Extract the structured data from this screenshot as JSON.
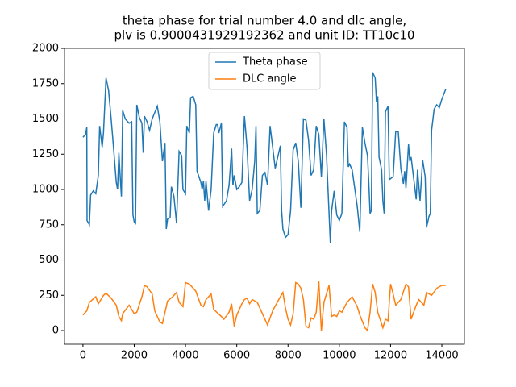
{
  "chart_data": {
    "type": "line",
    "title": [
      "theta phase for trial number 4.0 and dlc angle,",
      "plv is 0.9000431929192362 and unit ID: TT10c10"
    ],
    "series": [
      {
        "name": "Theta phase",
        "color": "#1f77b4",
        "x": [
          0,
          100,
          150,
          160,
          250,
          300,
          400,
          500,
          600,
          650,
          750,
          800,
          900,
          1000,
          1100,
          1200,
          1300,
          1350,
          1400,
          1450,
          1500,
          1550,
          1650,
          1800,
          1900,
          1950,
          2000,
          2050,
          2100,
          2200,
          2300,
          2350,
          2400,
          2500,
          2600,
          2700,
          2900,
          3000,
          3100,
          3200,
          3250,
          3300,
          3400,
          3450,
          3550,
          3650,
          3750,
          3850,
          3900,
          4000,
          4050,
          4150,
          4200,
          4300,
          4400,
          4450,
          4600,
          4650,
          4700,
          4750,
          4800,
          4900,
          5000,
          5100,
          5200,
          5250,
          5300,
          5400,
          5450,
          5600,
          5700,
          5800,
          5850,
          5900,
          6000,
          6100,
          6200,
          6300,
          6400,
          6500,
          6600,
          6700,
          6750,
          6800,
          6900,
          7000,
          7100,
          7200,
          7300,
          7400,
          7500,
          7600,
          7700,
          7750,
          7800,
          7900,
          8000,
          8100,
          8200,
          8300,
          8400,
          8500,
          8600,
          8700,
          8800,
          8900,
          9000,
          9100,
          9200,
          9300,
          9400,
          9500,
          9600,
          9650,
          9700,
          9800,
          9900,
          10000,
          10100,
          10200,
          10300,
          10350,
          10400,
          10500,
          10600,
          10700,
          10800,
          10900,
          11000,
          11100,
          11150,
          11200,
          11250,
          11300,
          11400,
          11450,
          11500,
          11550,
          11650,
          11700,
          11750,
          11800,
          11900,
          11950,
          12100,
          12200,
          12300,
          12400,
          12500,
          12550,
          12600,
          12700,
          12750,
          12800,
          12900,
          13000,
          13050,
          13150,
          13250,
          13350,
          13400,
          13500,
          13550,
          13600,
          13700,
          13800,
          13900,
          14000,
          14150
        ],
        "values": [
          1370,
          1390,
          1440,
          780,
          750,
          960,
          990,
          970,
          1100,
          1450,
          1300,
          1400,
          1790,
          1700,
          1500,
          1280,
          1050,
          1000,
          1260,
          1100,
          950,
          1560,
          1500,
          1470,
          1480,
          820,
          770,
          760,
          1600,
          1510,
          1470,
          1260,
          1520,
          1480,
          1420,
          1500,
          1590,
          1480,
          1200,
          1330,
          720,
          790,
          800,
          1020,
          950,
          760,
          1270,
          1240,
          1000,
          970,
          1450,
          1400,
          1650,
          1660,
          1600,
          1130,
          1050,
          1000,
          1060,
          920,
          1060,
          850,
          1000,
          1400,
          1460,
          1460,
          1400,
          1470,
          880,
          920,
          1030,
          1290,
          1030,
          1100,
          1000,
          1020,
          1050,
          1520,
          1300,
          920,
          1000,
          1200,
          1450,
          830,
          850,
          1100,
          1120,
          1030,
          1450,
          1300,
          1150,
          1230,
          1310,
          850,
          720,
          660,
          680,
          850,
          1280,
          1330,
          1200,
          870,
          1500,
          1490,
          1350,
          1100,
          1140,
          1450,
          1390,
          1090,
          1500,
          1250,
          830,
          620,
          850,
          990,
          820,
          780,
          830,
          1480,
          1440,
          1160,
          1180,
          1140,
          1010,
          880,
          700,
          1440,
          1330,
          1240,
          1050,
          830,
          850,
          1830,
          1790,
          1620,
          1660,
          1230,
          1140,
          920,
          830,
          1550,
          1590,
          1070,
          1090,
          1410,
          1410,
          1150,
          1040,
          1130,
          1010,
          1320,
          1200,
          1230,
          1080,
          930,
          1140,
          920,
          1210,
          1090,
          730,
          810,
          830,
          1420,
          1570,
          1600,
          1580,
          1640,
          1710
        ]
      },
      {
        "name": "DLC angle",
        "color": "#ff7f0e",
        "x": [
          0,
          150,
          250,
          500,
          600,
          800,
          900,
          1100,
          1300,
          1400,
          1500,
          1550,
          1800,
          2000,
          2100,
          2300,
          2400,
          2500,
          2700,
          2800,
          3000,
          3100,
          3300,
          3500,
          3650,
          3750,
          3900,
          4000,
          4150,
          4400,
          4600,
          4700,
          4800,
          5000,
          5100,
          5400,
          5500,
          5700,
          5800,
          5900,
          6000,
          6200,
          6300,
          6400,
          6500,
          6600,
          6800,
          6900,
          7200,
          7400,
          7700,
          7800,
          7900,
          8000,
          8100,
          8200,
          8300,
          8400,
          8500,
          8600,
          8700,
          8800,
          8900,
          9000,
          9100,
          9200,
          9300,
          9400,
          9600,
          9700,
          9800,
          9900,
          10000,
          10100,
          10300,
          10500,
          10700,
          10800,
          11000,
          11100,
          11200,
          11300,
          11400,
          11500,
          11700,
          11800,
          11900,
          12000,
          12100,
          12200,
          12400,
          12600,
          12700,
          12800,
          13000,
          13100,
          13300,
          13400,
          13600,
          13800,
          14000,
          14150
        ],
        "values": [
          110,
          140,
          200,
          240,
          190,
          250,
          265,
          230,
          180,
          100,
          70,
          120,
          180,
          120,
          130,
          240,
          320,
          310,
          260,
          140,
          60,
          50,
          210,
          240,
          270,
          200,
          170,
          340,
          330,
          280,
          180,
          170,
          220,
          260,
          150,
          100,
          80,
          130,
          190,
          30,
          110,
          190,
          220,
          230,
          190,
          220,
          200,
          160,
          40,
          140,
          240,
          270,
          160,
          80,
          40,
          120,
          340,
          330,
          300,
          220,
          30,
          20,
          90,
          80,
          130,
          350,
          0,
          200,
          320,
          100,
          110,
          100,
          140,
          130,
          200,
          240,
          170,
          110,
          20,
          0,
          130,
          330,
          270,
          130,
          20,
          80,
          70,
          330,
          260,
          180,
          220,
          330,
          310,
          80,
          180,
          220,
          180,
          270,
          250,
          300,
          320,
          320
        ]
      }
    ],
    "xlim": [
      -720,
      14880
    ],
    "ylim": [
      -97,
      2000
    ],
    "xticks": [
      0,
      2000,
      4000,
      6000,
      8000,
      10000,
      12000,
      14000
    ],
    "yticks": [
      0,
      250,
      500,
      750,
      1000,
      1250,
      1500,
      1750,
      2000
    ],
    "legend": "upper center"
  }
}
